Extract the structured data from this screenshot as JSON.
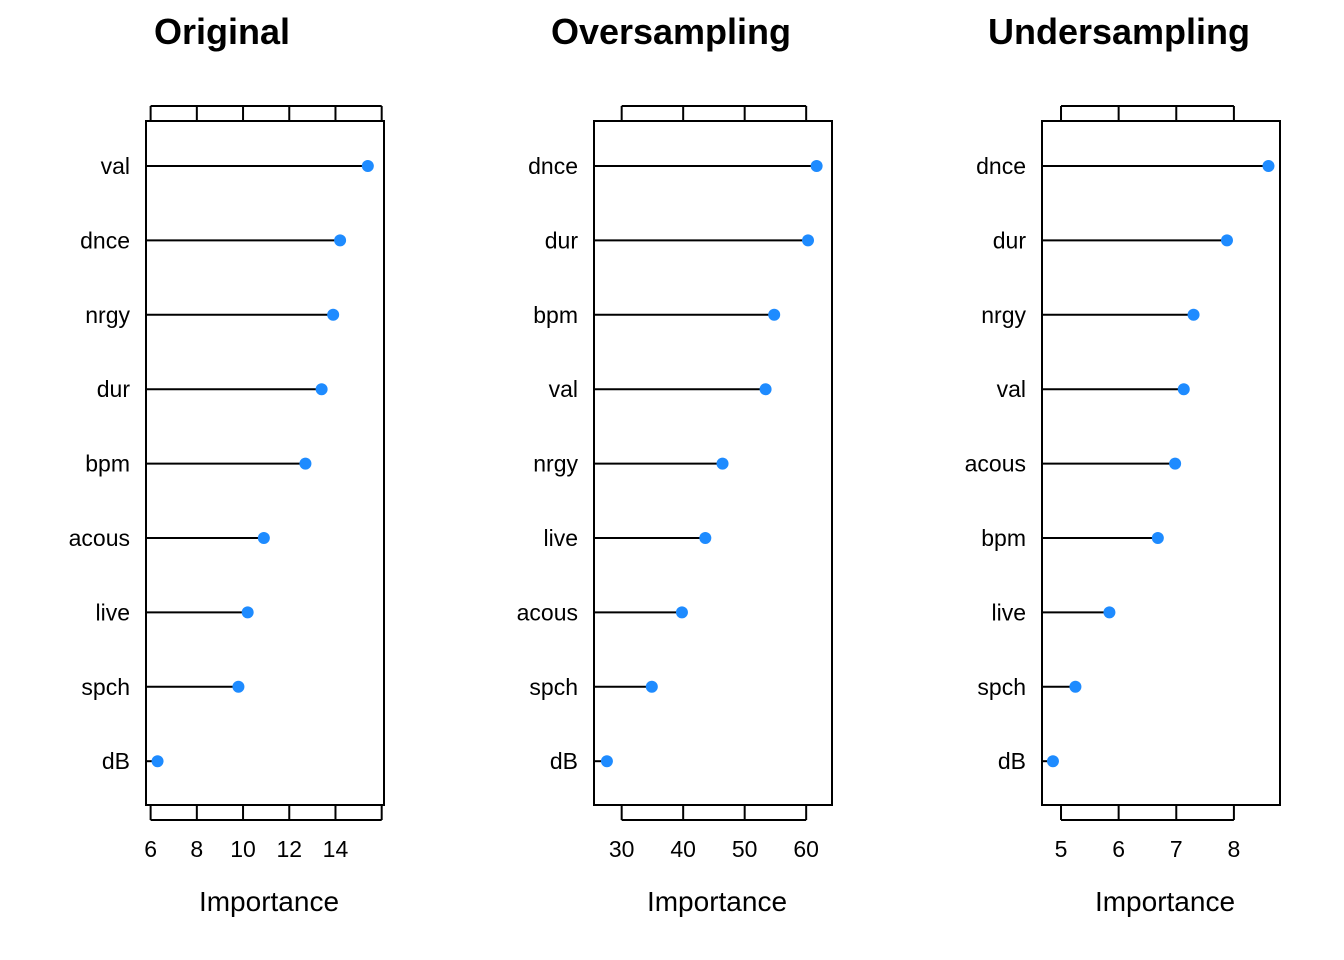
{
  "colors": {
    "point": "#1E8BFF",
    "line": "#000000"
  },
  "chart_data": [
    {
      "type": "dot",
      "title": "Original",
      "xlabel": "Importance",
      "ylabel": "",
      "xlim": [
        5.8,
        16.1
      ],
      "xticks": [
        6,
        8,
        10,
        12,
        14
      ],
      "top_ticks": [
        6,
        8,
        10,
        12,
        14,
        16
      ],
      "categories": [
        "val",
        "dnce",
        "nrgy",
        "dur",
        "bpm",
        "acous",
        "live",
        "spch",
        "dB"
      ],
      "values": [
        15.4,
        14.2,
        13.9,
        13.4,
        12.7,
        10.9,
        10.2,
        9.8,
        6.3
      ]
    },
    {
      "type": "dot",
      "title": "Oversampling",
      "xlabel": "Importance",
      "ylabel": "",
      "xlim": [
        25.5,
        64.2
      ],
      "xticks": [
        30,
        40,
        50,
        60
      ],
      "top_ticks": [
        30,
        40,
        50,
        60
      ],
      "categories": [
        "dnce",
        "dur",
        "bpm",
        "val",
        "nrgy",
        "live",
        "acous",
        "spch",
        "dB"
      ],
      "values": [
        61.7,
        60.3,
        54.8,
        53.4,
        46.4,
        43.6,
        39.8,
        34.9,
        27.6
      ]
    },
    {
      "type": "dot",
      "title": "Undersampling",
      "xlabel": "Importance",
      "ylabel": "",
      "xlim": [
        4.67,
        8.8
      ],
      "xticks": [
        5,
        6,
        7,
        8
      ],
      "top_ticks": [
        5,
        6,
        7,
        8
      ],
      "categories": [
        "dnce",
        "dur",
        "nrgy",
        "val",
        "acous",
        "bpm",
        "live",
        "spch",
        "dB"
      ],
      "values": [
        8.6,
        7.88,
        7.3,
        7.13,
        6.98,
        6.68,
        5.84,
        5.25,
        4.86
      ]
    }
  ]
}
